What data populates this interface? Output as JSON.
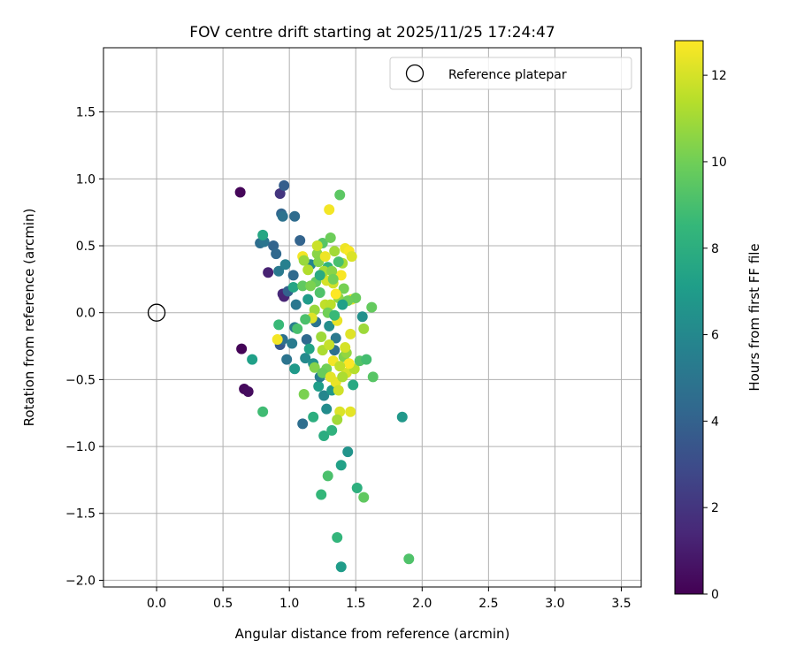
{
  "chart_data": {
    "type": "scatter",
    "title": "FOV centre drift starting at 2025/11/25 17:24:47",
    "xlabel": "Angular distance from reference (arcmin)",
    "ylabel": "Rotation from reference (arcmin)",
    "xlim": [
      -0.4,
      3.65
    ],
    "ylim": [
      -2.05,
      1.98
    ],
    "xticks": [
      0.0,
      0.5,
      1.0,
      1.5,
      2.0,
      2.5,
      3.0,
      3.5
    ],
    "xtick_labels": [
      "0.0",
      "0.5",
      "1.0",
      "1.5",
      "2.0",
      "2.5",
      "3.0",
      "3.5"
    ],
    "yticks": [
      1.5,
      1.0,
      0.5,
      0.0,
      -0.5,
      -1.0,
      -1.5,
      -2.0
    ],
    "ytick_labels": [
      "1.5",
      "1.0",
      "0.5",
      "0.0",
      "−0.5",
      "−1.0",
      "−1.5",
      "−2.0"
    ],
    "grid": true,
    "legend": {
      "position": "top-right",
      "entries": [
        "Reference platepar"
      ]
    },
    "reference_point": {
      "x": 0.0,
      "y": 0.0
    },
    "colorbar": {
      "label": "Hours from first FF file",
      "min": 0,
      "max": 12.8,
      "ticks": [
        0,
        2,
        4,
        6,
        8,
        10,
        12
      ],
      "tick_labels": [
        "0",
        "2",
        "4",
        "6",
        "8",
        "10",
        "12"
      ],
      "colormap": [
        "#440154",
        "#482878",
        "#3e4989",
        "#31688e",
        "#26828e",
        "#1f9e89",
        "#35b779",
        "#6ece58",
        "#b5de2b",
        "#fde725"
      ]
    },
    "points": [
      {
        "x": 0.63,
        "y": 0.9,
        "t": 0.2
      },
      {
        "x": 0.64,
        "y": -0.27,
        "t": 0.1
      },
      {
        "x": 0.66,
        "y": -0.57,
        "t": 0.3
      },
      {
        "x": 0.69,
        "y": -0.59,
        "t": 0.4
      },
      {
        "x": 0.84,
        "y": 0.3,
        "t": 1.2
      },
      {
        "x": 0.93,
        "y": 0.89,
        "t": 2.0
      },
      {
        "x": 0.95,
        "y": 0.14,
        "t": 1.5
      },
      {
        "x": 0.96,
        "y": 0.12,
        "t": 1.3
      },
      {
        "x": 0.96,
        "y": 0.95,
        "t": 3.8
      },
      {
        "x": 0.94,
        "y": 0.74,
        "t": 4.2
      },
      {
        "x": 0.95,
        "y": 0.72,
        "t": 4.8
      },
      {
        "x": 1.04,
        "y": 0.72,
        "t": 4.5
      },
      {
        "x": 0.78,
        "y": 0.52,
        "t": 4.6
      },
      {
        "x": 0.81,
        "y": 0.53,
        "t": 5.0
      },
      {
        "x": 0.88,
        "y": 0.5,
        "t": 4.1
      },
      {
        "x": 0.9,
        "y": 0.44,
        "t": 4.3
      },
      {
        "x": 0.92,
        "y": 0.31,
        "t": 5.2
      },
      {
        "x": 0.97,
        "y": 0.36,
        "t": 5.6
      },
      {
        "x": 0.99,
        "y": 0.16,
        "t": 4.0
      },
      {
        "x": 1.03,
        "y": 0.28,
        "t": 4.4
      },
      {
        "x": 1.05,
        "y": 0.06,
        "t": 5.1
      },
      {
        "x": 0.93,
        "y": -0.24,
        "t": 3.6
      },
      {
        "x": 0.95,
        "y": -0.2,
        "t": 4.7
      },
      {
        "x": 0.98,
        "y": -0.35,
        "t": 4.9
      },
      {
        "x": 1.02,
        "y": -0.23,
        "t": 5.3
      },
      {
        "x": 1.04,
        "y": -0.11,
        "t": 5.4
      },
      {
        "x": 1.08,
        "y": 0.54,
        "t": 4.1
      },
      {
        "x": 1.1,
        "y": -0.83,
        "t": 4.6
      },
      {
        "x": 0.72,
        "y": -0.35,
        "t": 7.2
      },
      {
        "x": 0.8,
        "y": 0.58,
        "t": 7.6
      },
      {
        "x": 0.8,
        "y": -0.74,
        "t": 8.8
      },
      {
        "x": 1.85,
        "y": -0.78,
        "t": 6.8
      },
      {
        "x": 0.92,
        "y": -0.09,
        "t": 8.6
      },
      {
        "x": 1.03,
        "y": 0.19,
        "t": 7.5
      },
      {
        "x": 1.04,
        "y": -0.42,
        "t": 6.9
      },
      {
        "x": 1.06,
        "y": -0.12,
        "t": 9.0
      },
      {
        "x": 1.1,
        "y": 0.2,
        "t": 9.6
      },
      {
        "x": 1.11,
        "y": -0.61,
        "t": 10.2
      },
      {
        "x": 1.12,
        "y": -0.34,
        "t": 6.1
      },
      {
        "x": 1.13,
        "y": -0.2,
        "t": 4.4
      },
      {
        "x": 1.14,
        "y": 0.1,
        "t": 7.0
      },
      {
        "x": 1.15,
        "y": -0.27,
        "t": 7.4
      },
      {
        "x": 1.16,
        "y": 0.36,
        "t": 5.8
      },
      {
        "x": 1.18,
        "y": -0.38,
        "t": 6.5
      },
      {
        "x": 1.18,
        "y": -0.78,
        "t": 8.0
      },
      {
        "x": 1.19,
        "y": 0.02,
        "t": 10.8
      },
      {
        "x": 1.2,
        "y": 0.23,
        "t": 9.7
      },
      {
        "x": 1.2,
        "y": -0.07,
        "t": 4.9
      },
      {
        "x": 1.21,
        "y": 0.44,
        "t": 10.5
      },
      {
        "x": 1.22,
        "y": -0.55,
        "t": 7.1
      },
      {
        "x": 1.23,
        "y": 0.15,
        "t": 9.2
      },
      {
        "x": 1.23,
        "y": -0.48,
        "t": 5.5
      },
      {
        "x": 1.24,
        "y": -1.36,
        "t": 8.5
      },
      {
        "x": 1.25,
        "y": 0.52,
        "t": 9.4
      },
      {
        "x": 1.25,
        "y": -0.28,
        "t": 11.2
      },
      {
        "x": 1.26,
        "y": -0.92,
        "t": 7.9
      },
      {
        "x": 1.26,
        "y": -0.62,
        "t": 5.9
      },
      {
        "x": 1.27,
        "y": 0.06,
        "t": 11.6
      },
      {
        "x": 1.28,
        "y": -0.42,
        "t": 10.0
      },
      {
        "x": 1.29,
        "y": 0.34,
        "t": 8.3
      },
      {
        "x": 1.29,
        "y": -1.22,
        "t": 9.1
      },
      {
        "x": 1.3,
        "y": 0.77,
        "t": 12.6
      },
      {
        "x": 1.3,
        "y": -0.1,
        "t": 6.3
      },
      {
        "x": 1.31,
        "y": 0.56,
        "t": 9.9
      },
      {
        "x": 1.32,
        "y": -0.58,
        "t": 6.7
      },
      {
        "x": 1.32,
        "y": -0.88,
        "t": 8.2
      },
      {
        "x": 1.33,
        "y": 0.22,
        "t": 11.9
      },
      {
        "x": 1.34,
        "y": -0.28,
        "t": 4.7
      },
      {
        "x": 1.35,
        "y": -0.52,
        "t": 12.4
      },
      {
        "x": 1.35,
        "y": -0.19,
        "t": 5.2
      },
      {
        "x": 1.36,
        "y": -1.68,
        "t": 8.4
      },
      {
        "x": 1.37,
        "y": 0.11,
        "t": 10.6
      },
      {
        "x": 1.38,
        "y": 0.88,
        "t": 9.5
      },
      {
        "x": 1.38,
        "y": -0.74,
        "t": 12.1
      },
      {
        "x": 1.39,
        "y": -1.14,
        "t": 7.3
      },
      {
        "x": 1.39,
        "y": -1.9,
        "t": 7.0
      },
      {
        "x": 1.4,
        "y": 0.37,
        "t": 11.1
      },
      {
        "x": 1.41,
        "y": -0.33,
        "t": 10.3
      },
      {
        "x": 1.42,
        "y": 0.48,
        "t": 12.5
      },
      {
        "x": 1.43,
        "y": -0.45,
        "t": 12.0
      },
      {
        "x": 1.44,
        "y": -1.04,
        "t": 6.6
      },
      {
        "x": 1.45,
        "y": 0.46,
        "t": 12.7
      },
      {
        "x": 1.46,
        "y": -0.16,
        "t": 12.2
      },
      {
        "x": 1.47,
        "y": 0.1,
        "t": 12.3
      },
      {
        "x": 1.48,
        "y": -0.54,
        "t": 7.7
      },
      {
        "x": 1.49,
        "y": -0.42,
        "t": 11.4
      },
      {
        "x": 1.5,
        "y": 0.11,
        "t": 9.8
      },
      {
        "x": 1.51,
        "y": -1.31,
        "t": 8.1
      },
      {
        "x": 1.53,
        "y": -0.36,
        "t": 9.3
      },
      {
        "x": 1.55,
        "y": -0.03,
        "t": 6.4
      },
      {
        "x": 1.56,
        "y": -0.12,
        "t": 10.9
      },
      {
        "x": 1.56,
        "y": -1.38,
        "t": 9.6
      },
      {
        "x": 1.58,
        "y": -0.35,
        "t": 8.9
      },
      {
        "x": 1.62,
        "y": 0.04,
        "t": 9.7
      },
      {
        "x": 1.63,
        "y": -0.48,
        "t": 9.4
      },
      {
        "x": 1.9,
        "y": -1.84,
        "t": 9.2
      },
      {
        "x": 1.1,
        "y": 0.42,
        "t": 12.6
      },
      {
        "x": 1.14,
        "y": 0.32,
        "t": 11.3
      },
      {
        "x": 1.17,
        "y": -0.04,
        "t": 12.2
      },
      {
        "x": 1.22,
        "y": 0.38,
        "t": 10.4
      },
      {
        "x": 1.24,
        "y": -0.18,
        "t": 10.9
      },
      {
        "x": 1.27,
        "y": 0.42,
        "t": 12.5
      },
      {
        "x": 1.28,
        "y": 0.24,
        "t": 12.0
      },
      {
        "x": 1.3,
        "y": -0.24,
        "t": 11.7
      },
      {
        "x": 1.31,
        "y": 0.06,
        "t": 11.5
      },
      {
        "x": 1.33,
        "y": -0.36,
        "t": 12.6
      },
      {
        "x": 1.34,
        "y": 0.46,
        "t": 11.0
      },
      {
        "x": 1.36,
        "y": -0.06,
        "t": 12.4
      },
      {
        "x": 1.37,
        "y": -0.58,
        "t": 11.9
      },
      {
        "x": 1.39,
        "y": 0.28,
        "t": 12.7
      },
      {
        "x": 1.4,
        "y": -0.48,
        "t": 11.2
      },
      {
        "x": 1.41,
        "y": 0.18,
        "t": 10.1
      },
      {
        "x": 1.43,
        "y": -0.3,
        "t": 10.7
      },
      {
        "x": 1.45,
        "y": -0.38,
        "t": 12.8
      },
      {
        "x": 1.46,
        "y": -0.74,
        "t": 12.3
      },
      {
        "x": 1.47,
        "y": 0.42,
        "t": 12.1
      },
      {
        "x": 1.21,
        "y": 0.5,
        "t": 11.8
      },
      {
        "x": 1.26,
        "y": 0.31,
        "t": 11.1
      },
      {
        "x": 1.32,
        "y": 0.31,
        "t": 10.5
      },
      {
        "x": 1.35,
        "y": 0.14,
        "t": 12.9
      },
      {
        "x": 1.38,
        "y": -0.4,
        "t": 11.6
      },
      {
        "x": 1.42,
        "y": -0.26,
        "t": 12.0
      },
      {
        "x": 0.91,
        "y": -0.2,
        "t": 12.6
      },
      {
        "x": 1.16,
        "y": 0.2,
        "t": 10.2
      },
      {
        "x": 1.19,
        "y": -0.41,
        "t": 10.4
      },
      {
        "x": 1.25,
        "y": -0.45,
        "t": 9.8
      },
      {
        "x": 1.29,
        "y": 0.0,
        "t": 10.0
      },
      {
        "x": 1.31,
        "y": -0.48,
        "t": 12.3
      },
      {
        "x": 1.36,
        "y": -0.8,
        "t": 11.0
      },
      {
        "x": 1.44,
        "y": 0.09,
        "t": 9.9
      },
      {
        "x": 1.11,
        "y": 0.39,
        "t": 10.8
      },
      {
        "x": 1.12,
        "y": -0.05,
        "t": 9.1
      },
      {
        "x": 1.23,
        "y": 0.28,
        "t": 7.8
      },
      {
        "x": 1.28,
        "y": -0.72,
        "t": 6.2
      },
      {
        "x": 1.34,
        "y": -0.02,
        "t": 8.6
      },
      {
        "x": 1.4,
        "y": 0.06,
        "t": 7.2
      },
      {
        "x": 1.37,
        "y": 0.38,
        "t": 9.0
      },
      {
        "x": 1.33,
        "y": 0.25,
        "t": 10.0
      }
    ]
  }
}
